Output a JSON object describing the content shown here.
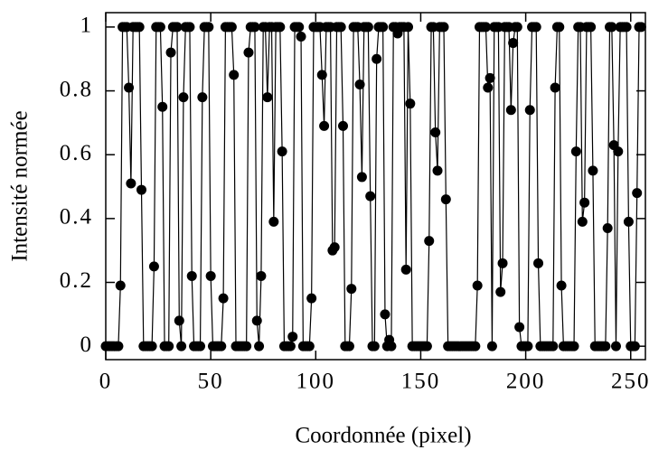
{
  "chart_data": {
    "type": "line",
    "xlabel": "Coordonnée (pixel)",
    "ylabel": "Intensité normée",
    "x": [
      0,
      1,
      2,
      3,
      4,
      5,
      6,
      7,
      8,
      9,
      10,
      11,
      12,
      13,
      14,
      15,
      16,
      17,
      18,
      19,
      20,
      21,
      22,
      23,
      24,
      25,
      26,
      27,
      28,
      29,
      30,
      31,
      32,
      33,
      34,
      35,
      36,
      37,
      38,
      39,
      40,
      41,
      42,
      43,
      44,
      45,
      46,
      47,
      48,
      49,
      50,
      51,
      52,
      53,
      54,
      55,
      56,
      57,
      58,
      59,
      60,
      61,
      62,
      63,
      64,
      65,
      66,
      67,
      68,
      69,
      70,
      71,
      72,
      73,
      74,
      75,
      76,
      77,
      78,
      79,
      80,
      81,
      82,
      83,
      84,
      85,
      86,
      87,
      88,
      89,
      90,
      91,
      92,
      93,
      94,
      95,
      96,
      97,
      98,
      99,
      100,
      101,
      102,
      103,
      104,
      105,
      106,
      107,
      108,
      109,
      110,
      111,
      112,
      113,
      114,
      115,
      116,
      117,
      118,
      119,
      120,
      121,
      122,
      123,
      124,
      125,
      126,
      127,
      128,
      129,
      130,
      131,
      132,
      133,
      134,
      135,
      136,
      137,
      138,
      139,
      140,
      141,
      142,
      143,
      144,
      145,
      146,
      147,
      148,
      149,
      150,
      151,
      152,
      153,
      154,
      155,
      156,
      157,
      158,
      159,
      160,
      161,
      162,
      163,
      164,
      165,
      166,
      167,
      168,
      169,
      170,
      171,
      172,
      173,
      174,
      175,
      176,
      177,
      178,
      179,
      180,
      181,
      182,
      183,
      184,
      185,
      186,
      187,
      188,
      189,
      190,
      191,
      192,
      193,
      194,
      195,
      196,
      197,
      198,
      199,
      200,
      201,
      202,
      203,
      204,
      205,
      206,
      207,
      208,
      209,
      210,
      211,
      212,
      213,
      214,
      215,
      216,
      217,
      218,
      219,
      220,
      221,
      222,
      223,
      224,
      225,
      226,
      227,
      228,
      229,
      230,
      231,
      232,
      233,
      234,
      235,
      236,
      237,
      238,
      239,
      240,
      241,
      242,
      243,
      244,
      245,
      246,
      247,
      248,
      249,
      250,
      251,
      252,
      253,
      254,
      255
    ],
    "series": [
      {
        "color": "#000000",
        "values": [
          0,
          0,
          0,
          0,
          0,
          0,
          0,
          0.19,
          1,
          1,
          1,
          0.81,
          0.51,
          1,
          1,
          1,
          1,
          0.49,
          0,
          0,
          0,
          0,
          0,
          0.25,
          1,
          1,
          1,
          0.75,
          0,
          0,
          0,
          0.92,
          1,
          1,
          1,
          0.08,
          0,
          0.78,
          1,
          1,
          1,
          0.22,
          0,
          0,
          0,
          0,
          0.78,
          1,
          1,
          1,
          0.22,
          0,
          0,
          0,
          0,
          0,
          0.15,
          1,
          1,
          1,
          1,
          0.85,
          0,
          0,
          0,
          0,
          0,
          0,
          0.92,
          1,
          1,
          1,
          0.08,
          0,
          0.22,
          1,
          1,
          0.78,
          1,
          1,
          0.39,
          1,
          1,
          1,
          0.61,
          0,
          0,
          0,
          0,
          0.03,
          1,
          1,
          1,
          0.97,
          0,
          0,
          0,
          0,
          0.15,
          1,
          1,
          1,
          1,
          0.85,
          0.69,
          1,
          1,
          1,
          0.3,
          0.31,
          1,
          1,
          1,
          0.69,
          0,
          0,
          0,
          0.18,
          1,
          1,
          1,
          0.82,
          0.53,
          1,
          1,
          1,
          0.47,
          0,
          0,
          0.9,
          1,
          1,
          1,
          0.1,
          0,
          0.02,
          0,
          1,
          1,
          0.98,
          1,
          1,
          1,
          0.24,
          1,
          0.76,
          0,
          0,
          0,
          0,
          0,
          0,
          0,
          0,
          0.33,
          1,
          1,
          0.67,
          0.55,
          1,
          1,
          1,
          0.46,
          0,
          0,
          0,
          0,
          0,
          0,
          0,
          0,
          0,
          0,
          0,
          0,
          0,
          0,
          0.19,
          1,
          1,
          1,
          1,
          0.81,
          0.84,
          0,
          1,
          1,
          1,
          0.17,
          0.26,
          1,
          1,
          1,
          0.74,
          0.95,
          1,
          1,
          0.06,
          0,
          0,
          0,
          0,
          0.74,
          1,
          1,
          1,
          0.26,
          0,
          0,
          0,
          0,
          0,
          0,
          0,
          0.81,
          1,
          1,
          0.19,
          0,
          0,
          0,
          0,
          0,
          0,
          0.61,
          1,
          1,
          0.39,
          0.45,
          1,
          1,
          1,
          0.55,
          0,
          0,
          0,
          0,
          0,
          0,
          0.37,
          1,
          1,
          0.63,
          0,
          0.61,
          1,
          1,
          1,
          1,
          0.39,
          0,
          0,
          0,
          0.48,
          1,
          1
        ]
      }
    ],
    "xlim": [
      0,
      257
    ],
    "xticks": [
      0,
      50,
      100,
      150,
      200,
      250
    ],
    "ylim": [
      -0.042,
      1.045
    ],
    "yticks": [
      0,
      0.2,
      0.4,
      0.6,
      0.8,
      1
    ],
    "grid": false,
    "markers": true
  }
}
